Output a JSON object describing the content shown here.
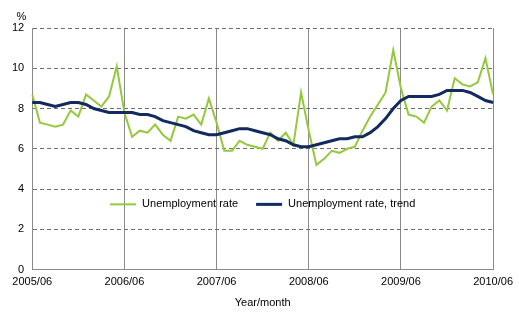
{
  "chart_data": {
    "type": "line",
    "x_label": "Year/month",
    "y_label": "%",
    "categories": [
      "2005/06",
      null,
      null,
      null,
      null,
      null,
      null,
      null,
      null,
      null,
      null,
      null,
      "2006/06",
      null,
      null,
      null,
      null,
      null,
      null,
      null,
      null,
      null,
      null,
      null,
      "2007/06",
      null,
      null,
      null,
      null,
      null,
      null,
      null,
      null,
      null,
      null,
      null,
      "2008/06",
      null,
      null,
      null,
      null,
      null,
      null,
      null,
      null,
      null,
      null,
      null,
      "2009/06",
      null,
      null,
      null,
      null,
      null,
      null,
      null,
      null,
      null,
      null,
      null,
      "2010/06"
    ],
    "series": [
      {
        "name": "Unemployment rate",
        "color": "#94c83d",
        "values": [
          8.7,
          7.3,
          7.2,
          7.1,
          7.2,
          7.9,
          7.6,
          8.7,
          8.4,
          8.1,
          8.6,
          10.1,
          7.8,
          6.6,
          6.9,
          6.8,
          7.2,
          6.7,
          6.4,
          7.6,
          7.5,
          7.7,
          7.2,
          8.5,
          7.3,
          5.9,
          5.9,
          6.4,
          6.2,
          6.1,
          6.0,
          6.8,
          6.4,
          6.8,
          6.2,
          8.8,
          6.9,
          5.2,
          5.5,
          5.9,
          5.8,
          6.0,
          6.1,
          6.9,
          7.6,
          8.2,
          8.8,
          10.9,
          9.0,
          7.7,
          7.6,
          7.3,
          8.1,
          8.4,
          7.9,
          9.5,
          9.2,
          9.1,
          9.3,
          10.5,
          8.7
        ]
      },
      {
        "name": "Unemployment rate, trend",
        "color": "#132a5e",
        "values": [
          8.3,
          8.3,
          8.2,
          8.1,
          8.2,
          8.3,
          8.3,
          8.2,
          8.0,
          7.9,
          7.8,
          7.8,
          7.8,
          7.8,
          7.7,
          7.7,
          7.6,
          7.4,
          7.3,
          7.2,
          7.1,
          6.9,
          6.8,
          6.7,
          6.7,
          6.8,
          6.9,
          7.0,
          7.0,
          6.9,
          6.8,
          6.7,
          6.5,
          6.4,
          6.2,
          6.1,
          6.1,
          6.2,
          6.3,
          6.4,
          6.5,
          6.5,
          6.6,
          6.6,
          6.8,
          7.1,
          7.5,
          8.0,
          8.4,
          8.6,
          8.6,
          8.6,
          8.6,
          8.7,
          8.9,
          8.9,
          8.9,
          8.8,
          8.6,
          8.4,
          8.3
        ]
      }
    ],
    "ylim": [
      0,
      12
    ],
    "yticks": [
      0,
      2,
      4,
      6,
      8,
      10,
      12
    ],
    "grid": true,
    "legend": "bottom"
  }
}
